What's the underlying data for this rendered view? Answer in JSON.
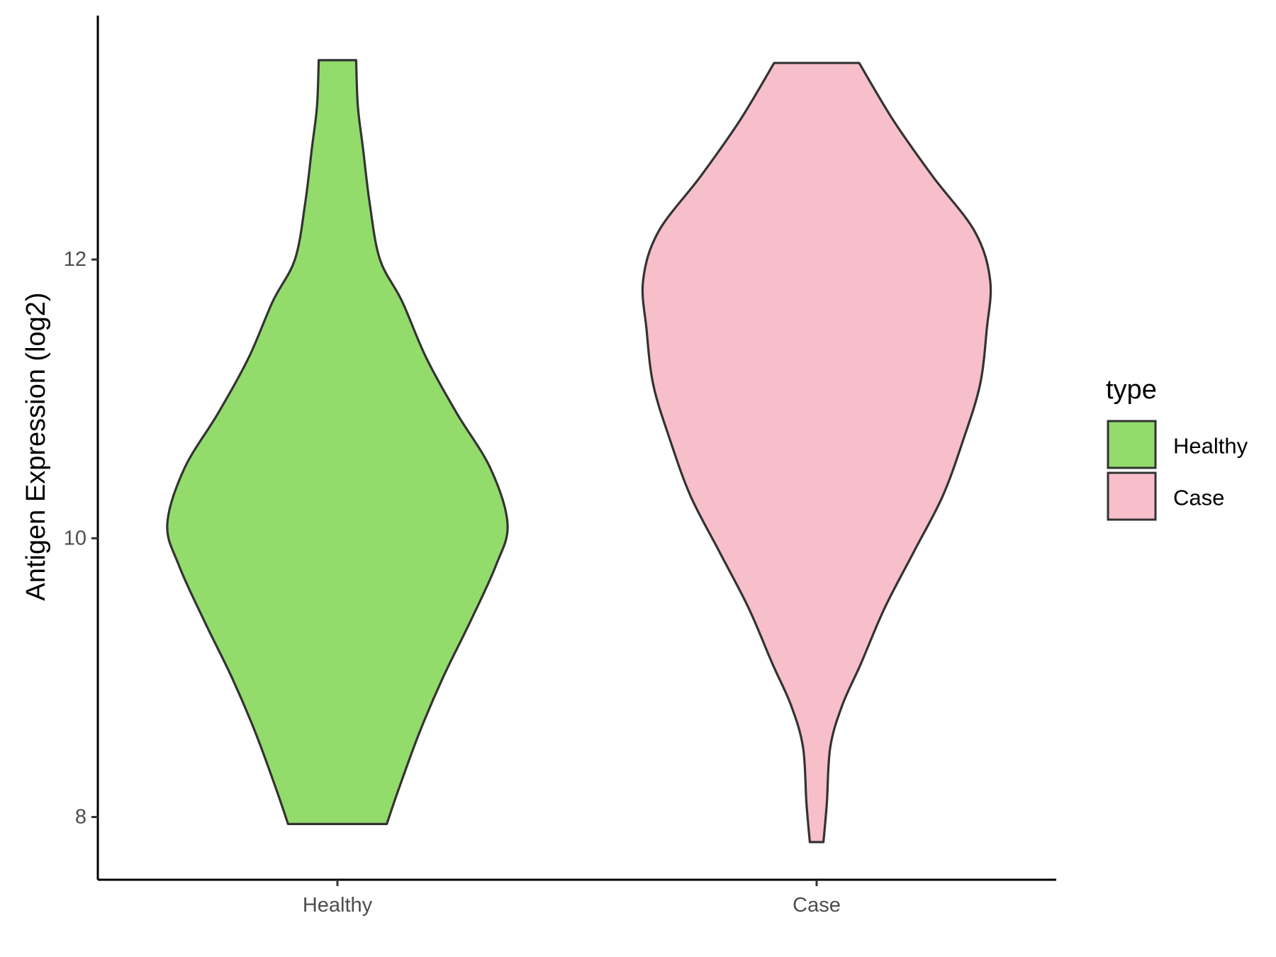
{
  "chart_data": {
    "type": "violin",
    "xlabel": "",
    "ylabel": "Antigen Expression (log2)",
    "categories": [
      "Healthy",
      "Case"
    ],
    "ylim": [
      7.55,
      13.75
    ],
    "yticks": [
      8,
      10,
      12
    ],
    "ytick_labels": [
      "8",
      "10",
      "12"
    ],
    "grid": false,
    "legend": {
      "title": "type",
      "position": "right",
      "entries": [
        {
          "label": "Healthy",
          "color": "#93dc6b"
        },
        {
          "label": "Case",
          "color": "#f7bfca"
        }
      ]
    },
    "series": [
      {
        "category": "Healthy",
        "color": "#93dc6b",
        "min": 7.95,
        "max": 13.43,
        "density_profile": [
          [
            7.95,
            0.29
          ],
          [
            8.2,
            0.36
          ],
          [
            8.6,
            0.48
          ],
          [
            9.0,
            0.62
          ],
          [
            9.4,
            0.78
          ],
          [
            9.8,
            0.93
          ],
          [
            10.1,
            1.0
          ],
          [
            10.5,
            0.9
          ],
          [
            10.9,
            0.7
          ],
          [
            11.3,
            0.52
          ],
          [
            11.7,
            0.38
          ],
          [
            12.0,
            0.25
          ],
          [
            12.4,
            0.19
          ],
          [
            12.8,
            0.15
          ],
          [
            13.1,
            0.12
          ],
          [
            13.43,
            0.11
          ]
        ]
      },
      {
        "category": "Case",
        "color": "#f7bfca",
        "min": 7.82,
        "max": 13.41,
        "density_profile": [
          [
            7.82,
            0.04
          ],
          [
            8.1,
            0.06
          ],
          [
            8.5,
            0.08
          ],
          [
            8.8,
            0.15
          ],
          [
            9.1,
            0.26
          ],
          [
            9.5,
            0.4
          ],
          [
            9.9,
            0.57
          ],
          [
            10.3,
            0.74
          ],
          [
            10.7,
            0.86
          ],
          [
            11.1,
            0.96
          ],
          [
            11.5,
            1.0
          ],
          [
            11.85,
            1.02
          ],
          [
            12.2,
            0.93
          ],
          [
            12.6,
            0.68
          ],
          [
            13.0,
            0.45
          ],
          [
            13.41,
            0.25
          ]
        ]
      }
    ]
  }
}
